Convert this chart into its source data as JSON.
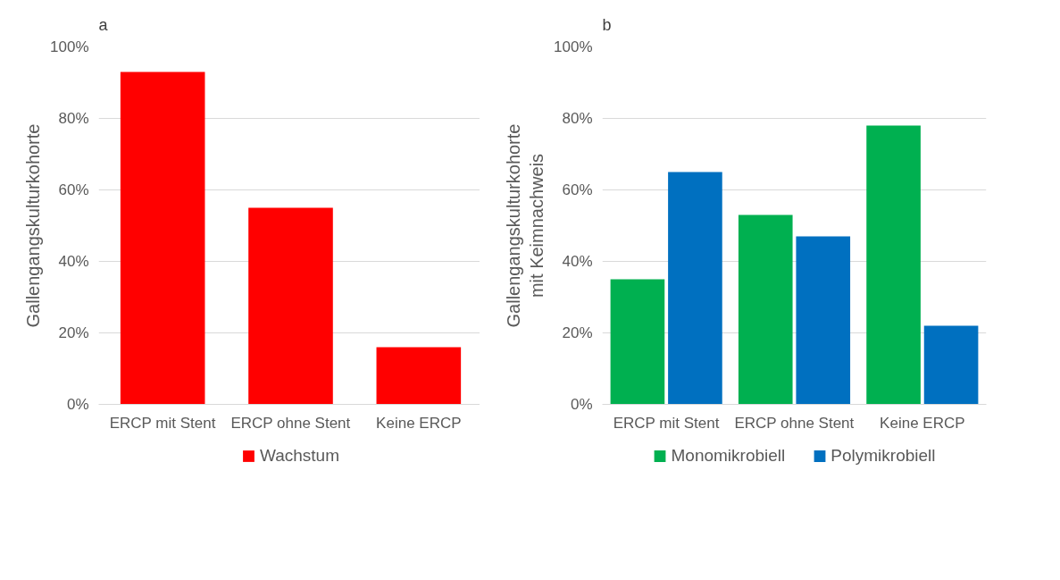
{
  "chart_data": [
    {
      "type": "bar",
      "annotations": [
        "a"
      ],
      "ylabel": "Gallengangskulturkohorte",
      "categories": [
        "ERCP mit Stent",
        "ERCP ohne Stent",
        "Keine ERCP"
      ],
      "series": [
        {
          "name": "Wachstum",
          "color": "#ff0000",
          "values": [
            93,
            55,
            16
          ]
        }
      ],
      "ylim": [
        0,
        100
      ],
      "yticks": [
        {
          "value": 0,
          "label": "0%"
        },
        {
          "value": 20,
          "label": "20%"
        },
        {
          "value": 40,
          "label": "40%"
        },
        {
          "value": 60,
          "label": "60%"
        },
        {
          "value": 80,
          "label": "80%"
        },
        {
          "value": 100,
          "label": "100%"
        }
      ],
      "grid": "y",
      "legend": "bottom"
    },
    {
      "type": "bar",
      "annotations": [
        "b"
      ],
      "ylabel": "Gallengangskulturkohorte\nmit Keimnachweis",
      "categories": [
        "ERCP mit Stent",
        "ERCP ohne Stent",
        "Keine ERCP"
      ],
      "series": [
        {
          "name": "Monomikrobiell",
          "color": "#00b050",
          "values": [
            35,
            53,
            78
          ]
        },
        {
          "name": "Polymikrobiell",
          "color": "#0070c0",
          "values": [
            65,
            47,
            22
          ]
        }
      ],
      "ylim": [
        0,
        100
      ],
      "yticks": [
        {
          "value": 0,
          "label": "0%"
        },
        {
          "value": 20,
          "label": "20%"
        },
        {
          "value": 40,
          "label": "40%"
        },
        {
          "value": 60,
          "label": "60%"
        },
        {
          "value": 80,
          "label": "80%"
        },
        {
          "value": 100,
          "label": "100%"
        }
      ],
      "grid": "y",
      "legend": "bottom"
    }
  ]
}
